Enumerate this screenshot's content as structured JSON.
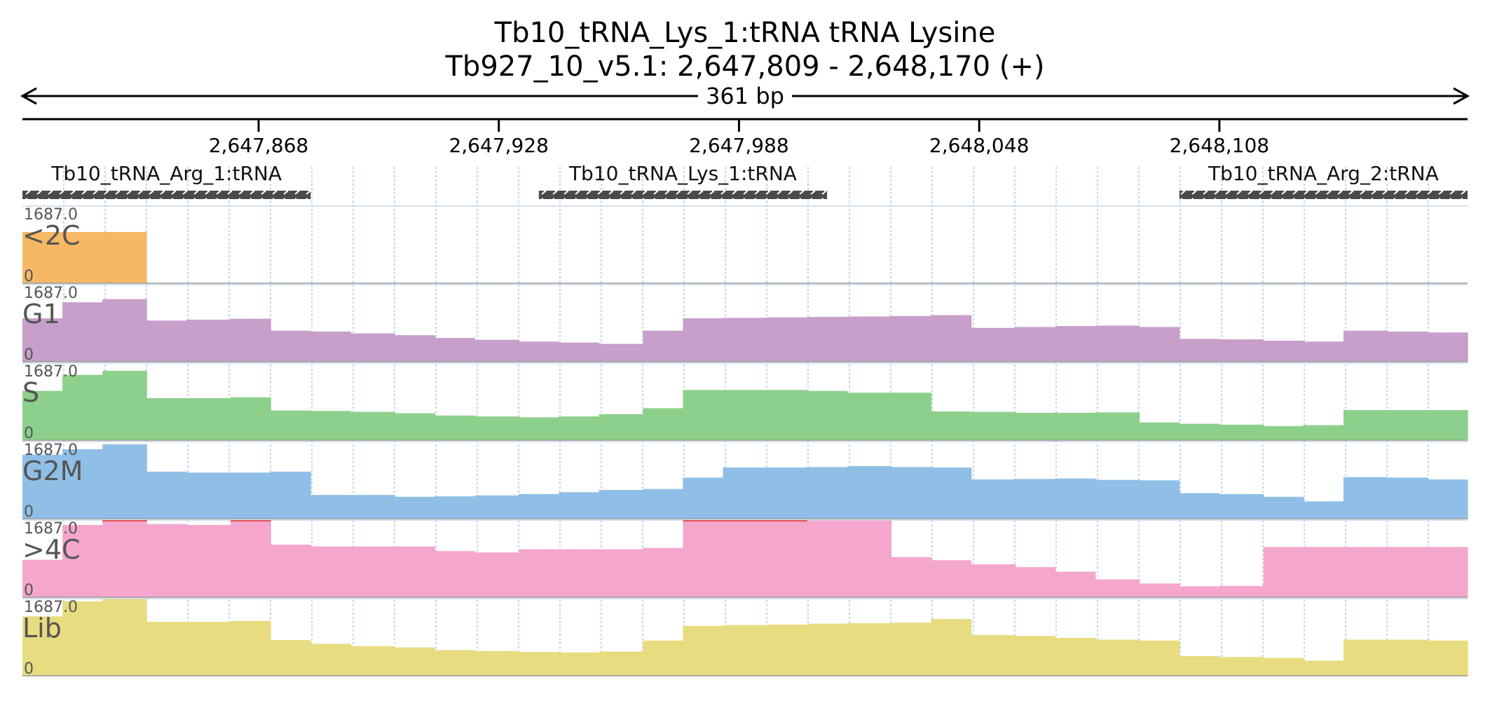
{
  "title_line1": "Tb10_tRNA_Lys_1:tRNA  tRNA Lysine",
  "title_line2": "Tb927_10_v5.1: 2,647,809 - 2,648,170 (+)",
  "span_label": "361 bp",
  "colors": {
    "<2C": "#f7b866",
    "G1": "#c79fca",
    "S": "#8dd08c",
    "G2M": "#8fbfe6",
    ">4C": "#f5a6cd",
    "Lib": "#e7dc80",
    "feature_bar": "#4a4a4a",
    "grid": "#a8c8ec",
    "max_marker": "#e05050"
  },
  "chart_data": {
    "type": "area",
    "region": {
      "chrom": "Tb927_10_v5.1",
      "start": 2647809,
      "end": 2648170,
      "strand": "+"
    },
    "ticks": [
      {
        "pos": 2647868,
        "label": "2,647,868"
      },
      {
        "pos": 2647928,
        "label": "2,647,928"
      },
      {
        "pos": 2647988,
        "label": "2,647,988"
      },
      {
        "pos": 2648048,
        "label": "2,648,048"
      },
      {
        "pos": 2648108,
        "label": "2,648,108"
      }
    ],
    "features": [
      {
        "label": "Tb10_tRNA_Arg_1:tRNA",
        "start": 2647809,
        "end": 2647881
      },
      {
        "label": "Tb10_tRNA_Lys_1:tRNA",
        "start": 2647938,
        "end": 2648010
      },
      {
        "label": "Tb10_tRNA_Arg_2:tRNA",
        "start": 2648098,
        "end": 2648170
      }
    ],
    "bin_edges": [
      2647809,
      2647819,
      2647829,
      2647840,
      2647850,
      2647861,
      2647871,
      2647881,
      2647891,
      2647902,
      2647912,
      2647922,
      2647933,
      2647943,
      2647953,
      2647964,
      2647974,
      2647984,
      2647995,
      2648005,
      2648015,
      2648026,
      2648036,
      2648046,
      2648057,
      2648067,
      2648077,
      2648088,
      2648098,
      2648108,
      2648119,
      2648129,
      2648139,
      2648150,
      2648160,
      2648170
    ],
    "ylim": [
      0,
      1687.0
    ],
    "y_max_label": "1687.0",
    "y_min_label": "0",
    "series": [
      {
        "name": "<2C",
        "values": [
          1120,
          1120,
          1120,
          0,
          0,
          0,
          0,
          0,
          0,
          0,
          0,
          0,
          0,
          0,
          0,
          0,
          0,
          0,
          0,
          0,
          0,
          0,
          0,
          0,
          0,
          0,
          0,
          0,
          0,
          0,
          0,
          0,
          0,
          0,
          0
        ]
      },
      {
        "name": "G1",
        "values": [
          950,
          1300,
          1370,
          900,
          920,
          940,
          680,
          660,
          620,
          580,
          520,
          480,
          440,
          420,
          390,
          680,
          950,
          960,
          970,
          980,
          990,
          1000,
          1020,
          740,
          760,
          780,
          790,
          760,
          500,
          490,
          460,
          440,
          680,
          660,
          640
        ]
      },
      {
        "name": "S",
        "values": [
          1080,
          1430,
          1520,
          920,
          920,
          940,
          650,
          640,
          620,
          590,
          540,
          520,
          500,
          520,
          570,
          700,
          1100,
          1100,
          1100,
          1080,
          1040,
          1040,
          630,
          620,
          600,
          600,
          610,
          390,
          360,
          340,
          310,
          330,
          660,
          660,
          660
        ]
      },
      {
        "name": "G2M",
        "values": [
          1400,
          1520,
          1630,
          1030,
          1010,
          1010,
          1030,
          520,
          520,
          480,
          490,
          510,
          540,
          580,
          630,
          650,
          900,
          1120,
          1120,
          1130,
          1150,
          1130,
          1120,
          860,
          870,
          880,
          850,
          840,
          560,
          540,
          480,
          380,
          910,
          900,
          860
        ]
      },
      {
        "name": ">4C",
        "values": [
          820,
          1580,
          1700,
          1600,
          1580,
          1690,
          1150,
          1110,
          1110,
          1110,
          1010,
          980,
          1050,
          1050,
          1050,
          1080,
          1700,
          1700,
          1700,
          1680,
          1680,
          880,
          810,
          720,
          660,
          560,
          390,
          300,
          240,
          250,
          1100,
          1100,
          1100,
          1100,
          1100
        ]
      },
      {
        "name": "Lib",
        "values": [
          1300,
          1630,
          1680,
          1180,
          1180,
          1200,
          780,
          700,
          650,
          620,
          560,
          540,
          520,
          510,
          530,
          770,
          1090,
          1110,
          1120,
          1140,
          1150,
          1160,
          1240,
          890,
          870,
          830,
          790,
          770,
          430,
          410,
          390,
          330,
          790,
          790,
          770
        ]
      }
    ]
  }
}
